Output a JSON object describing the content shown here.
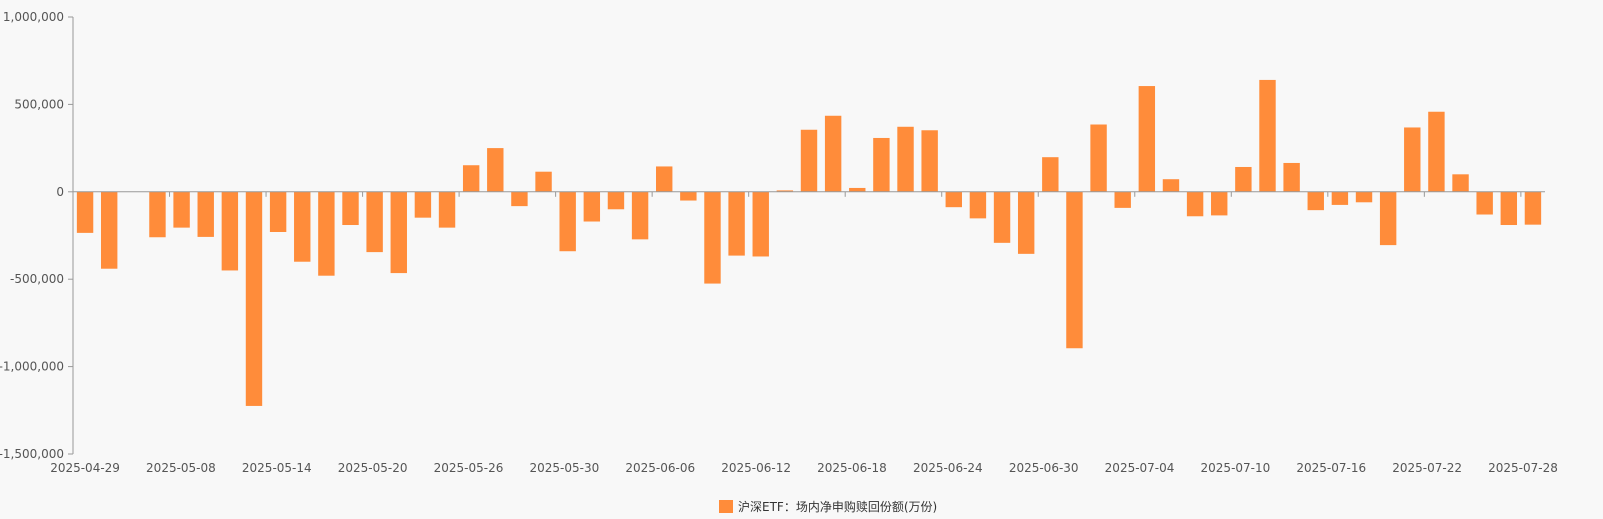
{
  "chart_data": {
    "type": "bar",
    "title": "",
    "xlabel": "",
    "ylabel": "",
    "ylim": [
      -1500000,
      1000000
    ],
    "yticks": [
      1000000,
      500000,
      0,
      -500000,
      -1000000,
      -1500000
    ],
    "ytick_labels": [
      "1,000,000",
      "500,000",
      "0",
      "-500,000",
      "-1,000,000",
      "-1,500,000"
    ],
    "xtick_labels": [
      "2025-04-29",
      "2025-05-08",
      "2025-05-14",
      "2025-05-20",
      "2025-05-26",
      "2025-05-30",
      "2025-06-06",
      "2025-06-12",
      "2025-06-18",
      "2025-06-24",
      "2025-06-30",
      "2025-07-04",
      "2025-07-10",
      "2025-07-16",
      "2025-07-22",
      "2025-07-28"
    ],
    "grid": false,
    "legend_position": "bottom-center",
    "color": "#ff8c3a",
    "series": [
      {
        "name": "沪深ETF：场内净申购赎回份额(万份)",
        "values": [
          -235000,
          -440000,
          0,
          -260000,
          -205000,
          -258000,
          -450000,
          -1225000,
          -230000,
          -400000,
          -480000,
          -190000,
          -345000,
          -465000,
          -148000,
          -205000,
          152000,
          250000,
          -82000,
          115000,
          -340000,
          -170000,
          -100000,
          -272000,
          145000,
          -50000,
          -525000,
          -365000,
          -370000,
          8000,
          355000,
          435000,
          22000,
          308000,
          372000,
          352000,
          -88000,
          -152000,
          -292000,
          -355000,
          198000,
          -895000,
          385000,
          -92000,
          605000,
          72000,
          -140000,
          -135000,
          142000,
          640000,
          165000,
          -105000,
          -75000,
          -60000,
          -305000,
          368000,
          458000,
          100000,
          -130000,
          -190000,
          -188000
        ]
      }
    ]
  }
}
